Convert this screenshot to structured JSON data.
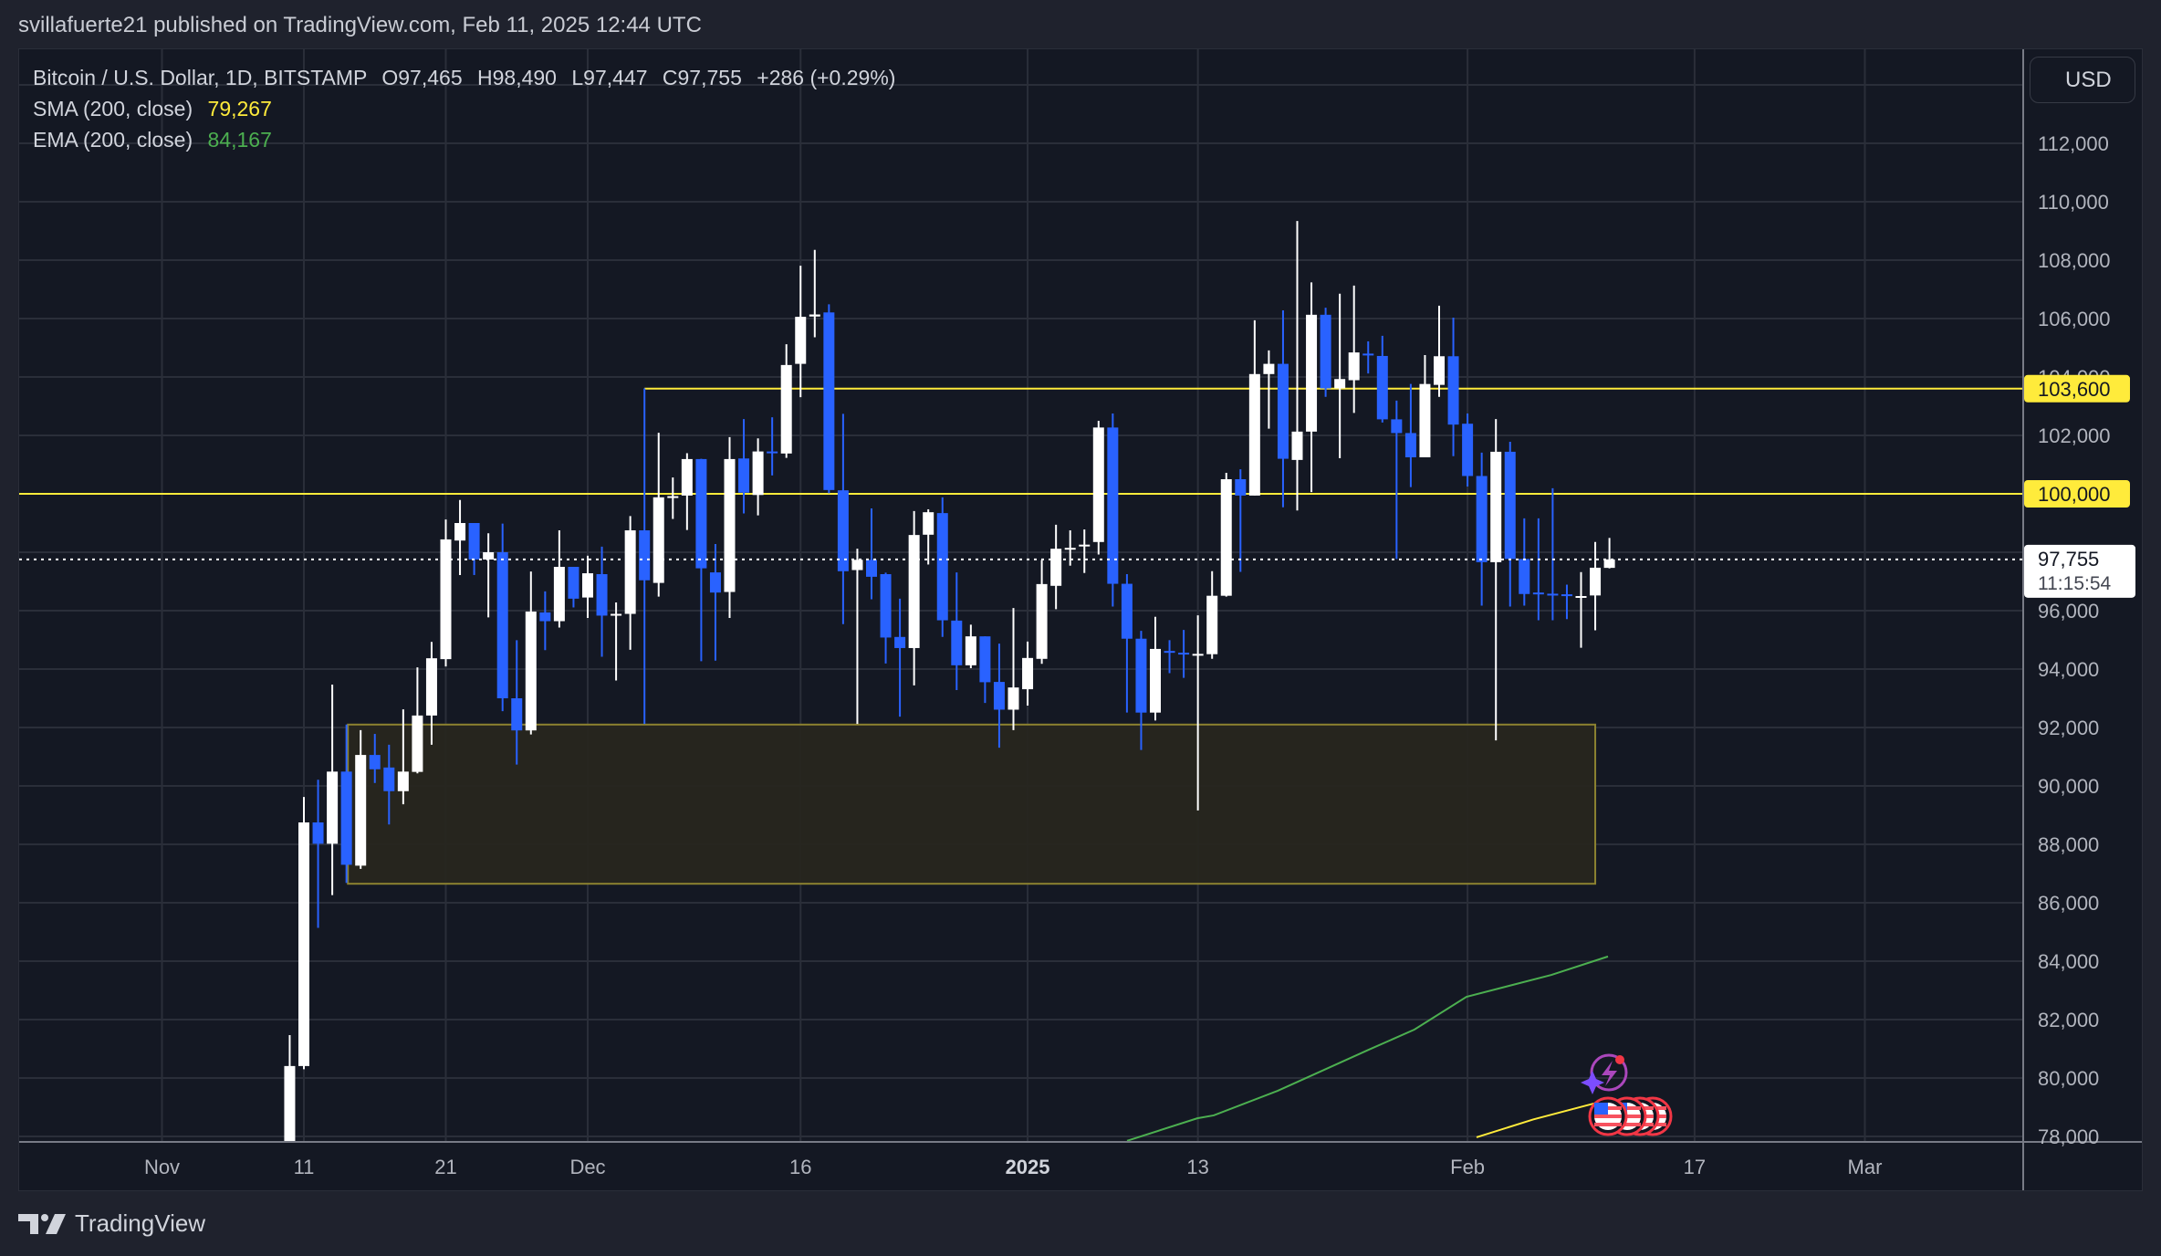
{
  "header": {
    "published": "svillafuerte21 published on TradingView.com, Feb 11, 2025 12:44 UTC"
  },
  "legend": {
    "symbol": "Bitcoin / U.S. Dollar, 1D, BITSTAMP",
    "open": "O97,465",
    "high": "H98,490",
    "low": "L97,447",
    "close": "C97,755",
    "change": "+286 (+0.29%)",
    "sma_label": "SMA (200, close)",
    "sma_value": "79,267",
    "ema_label": "EMA (200, close)",
    "ema_value": "84,167"
  },
  "axis": {
    "currency": "USD",
    "last_price_label": "97,755",
    "countdown": "11:15:54",
    "level_labels": [
      "103,600",
      "100,000"
    ]
  },
  "footer": {
    "logo_text": "TradingView"
  },
  "colors": {
    "up": "#ffffff",
    "down": "#2962ff",
    "sma": "#ffeb3b",
    "ema": "#4caf50",
    "level": "#ffeb3b",
    "zone_fill": "#27261f",
    "zone_stroke": "#8c8230",
    "grid": "#2a2e39",
    "bg": "#141823"
  },
  "chart_data": {
    "type": "candlestick",
    "title": "Bitcoin / U.S. Dollar, 1D, BITSTAMP",
    "ylabel": "USD",
    "ylim": [
      78000,
      114000
    ],
    "y_ticks": [
      78000,
      80000,
      82000,
      84000,
      86000,
      88000,
      90000,
      92000,
      94000,
      96000,
      98000,
      100000,
      102000,
      104000,
      106000,
      108000,
      110000,
      112000
    ],
    "x_ticks": [
      {
        "label": "Nov",
        "day": 0,
        "bold": false
      },
      {
        "label": "11",
        "day": 10,
        "bold": false
      },
      {
        "label": "21",
        "day": 20,
        "bold": false
      },
      {
        "label": "Dec",
        "day": 30,
        "bold": false
      },
      {
        "label": "16",
        "day": 45,
        "bold": false
      },
      {
        "label": "2025",
        "day": 61,
        "bold": true
      },
      {
        "label": "13",
        "day": 73,
        "bold": false
      },
      {
        "label": "Feb",
        "day": 92,
        "bold": false
      },
      {
        "label": "17",
        "day": 108,
        "bold": false
      },
      {
        "label": "Mar",
        "day": 120,
        "bold": false
      }
    ],
    "start_date": "2024-11-10",
    "start_day_index": 9,
    "ohlc": [
      [
        76500,
        81470,
        76000,
        80410
      ],
      [
        80410,
        89620,
        80300,
        88750
      ],
      [
        88750,
        90210,
        85140,
        88020
      ],
      [
        88020,
        93470,
        86260,
        90490
      ],
      [
        90490,
        92100,
        86680,
        87300
      ],
      [
        87270,
        91910,
        87160,
        91060
      ],
      [
        91060,
        91780,
        90100,
        90570
      ],
      [
        90630,
        91410,
        88680,
        89820
      ],
      [
        89820,
        92620,
        89370,
        90490
      ],
      [
        90480,
        94060,
        90430,
        92410
      ],
      [
        92410,
        94930,
        91410,
        94370
      ],
      [
        94340,
        99120,
        94090,
        98440
      ],
      [
        98400,
        99790,
        97220,
        99000
      ],
      [
        99000,
        99000,
        97220,
        97750
      ],
      [
        97750,
        98650,
        95770,
        98000
      ],
      [
        98000,
        98980,
        92560,
        93000
      ],
      [
        93000,
        94990,
        90730,
        91900
      ],
      [
        91900,
        97340,
        91760,
        95970
      ],
      [
        95940,
        96660,
        94650,
        95640
      ],
      [
        95640,
        98750,
        95420,
        97500
      ],
      [
        97500,
        97500,
        96110,
        96410
      ],
      [
        96450,
        97880,
        95750,
        97280
      ],
      [
        97250,
        98190,
        94420,
        95830
      ],
      [
        95870,
        96280,
        93610,
        95890
      ],
      [
        95890,
        99240,
        94660,
        98750
      ],
      [
        98750,
        103610,
        92120,
        97040
      ],
      [
        96950,
        102090,
        96480,
        99880
      ],
      [
        99880,
        100560,
        99140,
        99920
      ],
      [
        99940,
        101390,
        98760,
        101190
      ],
      [
        101190,
        101200,
        94270,
        97450
      ],
      [
        97310,
        98280,
        94290,
        96620
      ],
      [
        96640,
        101940,
        95750,
        101190
      ],
      [
        101210,
        102560,
        99330,
        100040
      ],
      [
        99960,
        101900,
        99260,
        101450
      ],
      [
        101450,
        102620,
        100630,
        101400
      ],
      [
        101380,
        105120,
        101230,
        104410
      ],
      [
        104450,
        107810,
        103310,
        106060
      ],
      [
        106070,
        108350,
        105360,
        106140
      ],
      [
        106210,
        106490,
        100020,
        100130
      ],
      [
        100120,
        102740,
        95540,
        97350
      ],
      [
        97390,
        98120,
        92120,
        97740
      ],
      [
        97740,
        99500,
        96390,
        97160
      ],
      [
        97250,
        97300,
        94190,
        95080
      ],
      [
        95100,
        96410,
        92370,
        94720
      ],
      [
        94720,
        99410,
        93440,
        98590
      ],
      [
        98600,
        99470,
        97580,
        99370
      ],
      [
        99340,
        99880,
        95100,
        95670
      ],
      [
        95660,
        97310,
        93280,
        94130
      ],
      [
        94130,
        95520,
        94030,
        95120
      ],
      [
        95120,
        95120,
        92840,
        93550
      ],
      [
        93560,
        94870,
        91310,
        92610
      ],
      [
        92610,
        96090,
        91910,
        93370
      ],
      [
        93310,
        94940,
        92750,
        94380
      ],
      [
        94350,
        97730,
        94180,
        96910
      ],
      [
        96850,
        98940,
        96050,
        98120
      ],
      [
        98120,
        98750,
        97540,
        98150
      ],
      [
        98250,
        98780,
        97290,
        98260
      ],
      [
        98350,
        102500,
        97920,
        102270
      ],
      [
        102270,
        102750,
        96140,
        96920
      ],
      [
        96920,
        97250,
        92510,
        95040
      ],
      [
        95040,
        95310,
        91230,
        92510
      ],
      [
        92510,
        95790,
        92240,
        94690
      ],
      [
        94620,
        94990,
        93860,
        94560
      ],
      [
        94560,
        95340,
        93700,
        94520
      ],
      [
        94490,
        95840,
        89160,
        94520
      ],
      [
        94510,
        97350,
        94350,
        96510
      ],
      [
        96510,
        100720,
        96480,
        100500
      ],
      [
        100500,
        100840,
        97330,
        99940
      ],
      [
        99940,
        105940,
        99940,
        104100
      ],
      [
        104100,
        104910,
        102230,
        104450
      ],
      [
        104450,
        106280,
        99540,
        101200
      ],
      [
        101160,
        109340,
        99430,
        102130
      ],
      [
        102130,
        107240,
        100060,
        106130
      ],
      [
        106130,
        106370,
        103320,
        103610
      ],
      [
        103610,
        106850,
        101220,
        103930
      ],
      [
        103890,
        107130,
        102770,
        104840
      ],
      [
        104800,
        105220,
        104120,
        104770
      ],
      [
        104720,
        105410,
        102440,
        102550
      ],
      [
        102550,
        103190,
        97770,
        102080
      ],
      [
        102080,
        103760,
        100230,
        101250
      ],
      [
        101250,
        104750,
        101250,
        103760
      ],
      [
        103730,
        106440,
        103320,
        104710
      ],
      [
        104710,
        106030,
        101290,
        102370
      ],
      [
        102400,
        102750,
        100250,
        100610
      ],
      [
        100610,
        101410,
        96170,
        97660
      ],
      [
        97660,
        102560,
        91560,
        101440
      ],
      [
        101440,
        101780,
        96140,
        97770
      ],
      [
        97770,
        99160,
        96170,
        96570
      ],
      [
        96620,
        99160,
        95670,
        96600
      ],
      [
        96580,
        100190,
        95670,
        96560
      ],
      [
        96560,
        96890,
        95710,
        96530
      ],
      [
        96480,
        97320,
        94730,
        96500
      ],
      [
        96520,
        98350,
        95330,
        97470
      ],
      [
        97465,
        98490,
        97447,
        97755
      ]
    ],
    "ema200": [
      [
        1235,
        77850
      ],
      [
        1312,
        78620
      ],
      [
        1330,
        78720
      ],
      [
        1400,
        79560
      ],
      [
        1500,
        80970
      ],
      [
        1550,
        81660
      ],
      [
        1607,
        82780
      ],
      [
        1700,
        83530
      ],
      [
        1762,
        84160
      ]
    ],
    "sma200": [
      [
        1618,
        77970
      ],
      [
        1680,
        78580
      ],
      [
        1747,
        79130
      ]
    ],
    "levels": [
      {
        "price": 103600,
        "from_day": 34,
        "label": "103,600"
      },
      {
        "price": 100000,
        "from_day": -11,
        "label": "100,000"
      }
    ],
    "zone": {
      "top": 92100,
      "bottom": 86650,
      "from_day": 13.1,
      "to_day": 101.0
    },
    "last_price": 97755
  }
}
